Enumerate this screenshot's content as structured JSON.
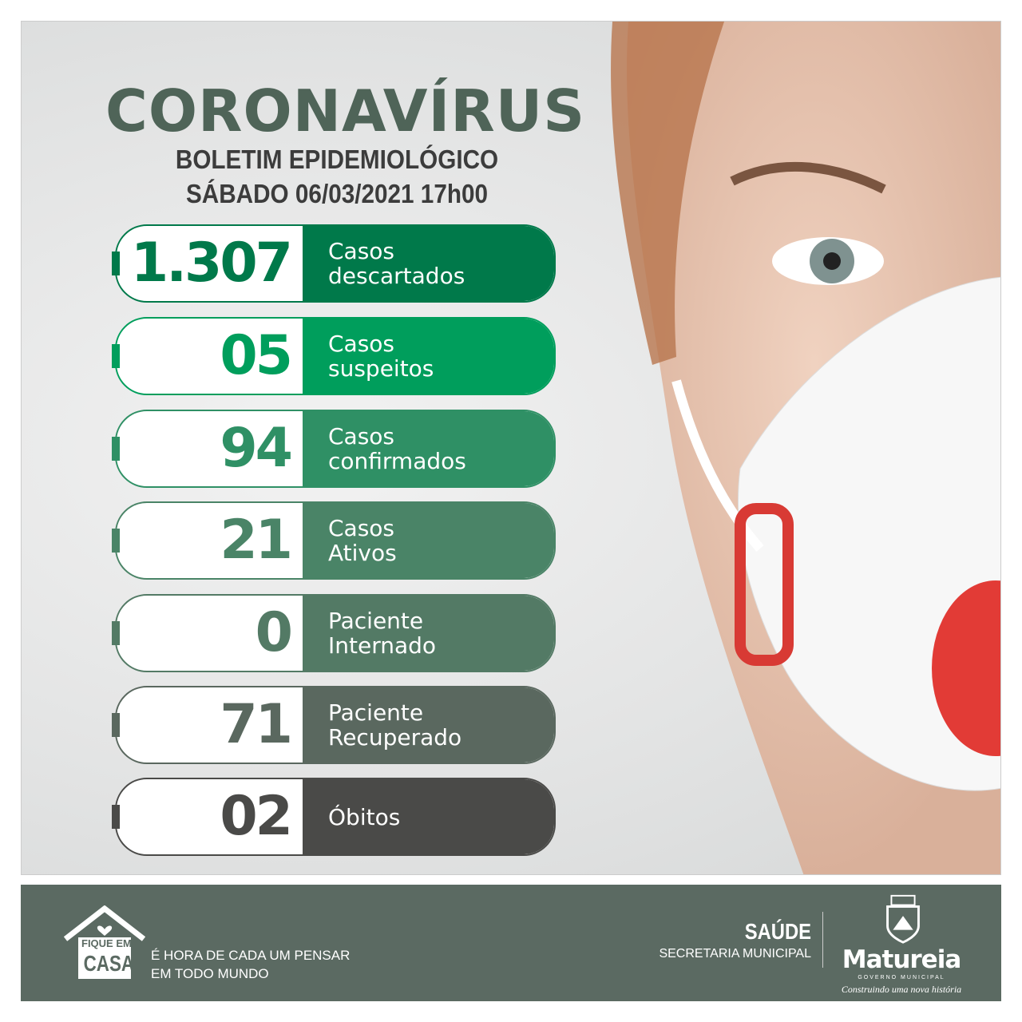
{
  "header": {
    "title": "CORONAVÍRUS",
    "subtitle": "BOLETIM EPIDEMIOLÓGICO",
    "date": "SÁBADO 06/03/2021 17h00"
  },
  "stats": [
    {
      "value": "1.307",
      "line1": "Casos",
      "line2": "descartados",
      "color": "#00794a"
    },
    {
      "value": "05",
      "line1": "Casos",
      "line2": "suspeitos",
      "color": "#009e5c"
    },
    {
      "value": "94",
      "line1": "Casos",
      "line2": "confirmados",
      "color": "#2f9065"
    },
    {
      "value": "21",
      "line1": "Casos",
      "line2": "Ativos",
      "color": "#4a8467"
    },
    {
      "value": "0",
      "line1": "Paciente",
      "line2": "Internado",
      "color": "#537a65"
    },
    {
      "value": "71",
      "line1": "Paciente",
      "line2": "Recuperado",
      "color": "#5a685f"
    },
    {
      "value": "02",
      "line1": "Óbitos",
      "line2": "",
      "color": "#4a4a48"
    }
  ],
  "footer": {
    "house_top": "FIQUE EM",
    "house_bottom": "CASA",
    "slogan1": "É HORA DE CADA UM PENSAR",
    "slogan2": "EM TODO MUNDO",
    "dept": "SAÚDE",
    "dept_sub": "SECRETARIA MUNICIPAL",
    "city": "Matureia",
    "city_sub": "GOVERNO MUNICIPAL",
    "motto": "Construindo uma nova história",
    "bg_color": "#5b6a62"
  }
}
